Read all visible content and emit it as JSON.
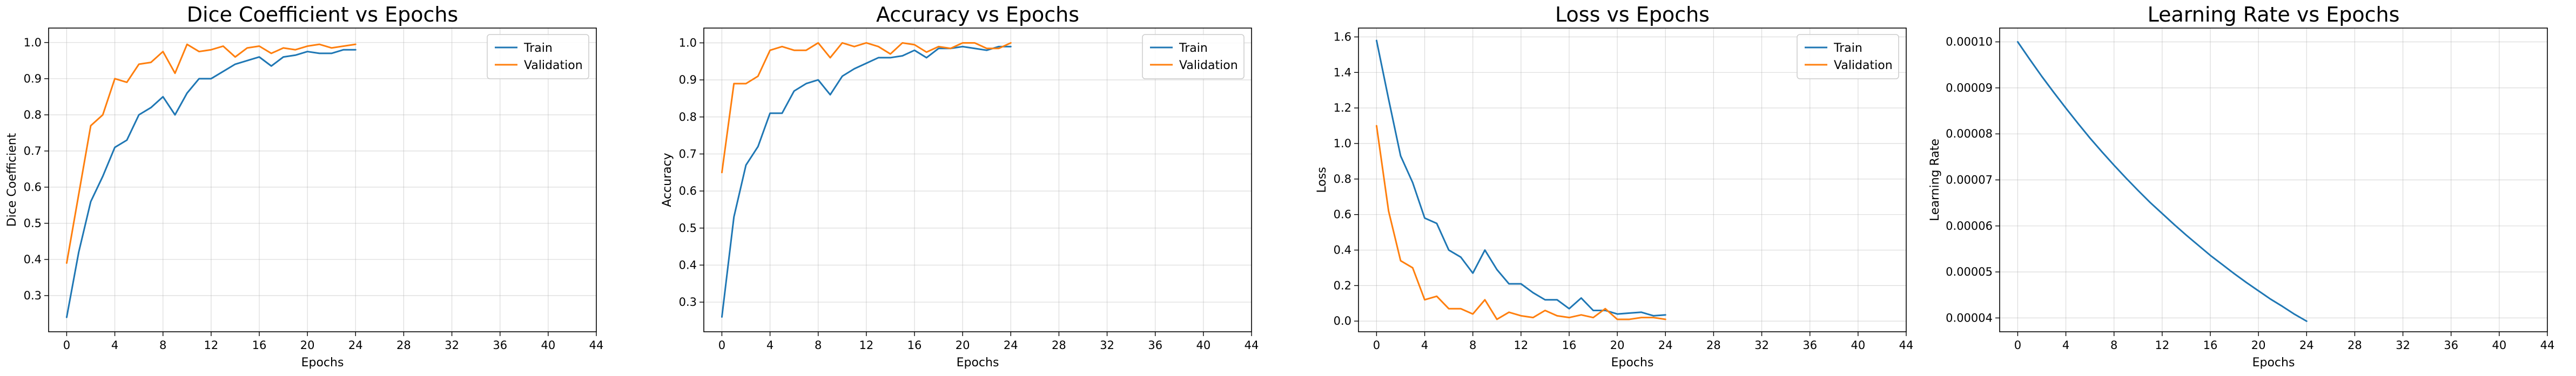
{
  "colors": {
    "train": "#1f77b4",
    "validation": "#ff7f0e"
  },
  "chart_data": [
    {
      "type": "line",
      "title": "Dice Coefficient vs Epochs",
      "xlabel": "Epochs",
      "ylabel": "Dice Coefficient",
      "xlim": [
        -1.5,
        44
      ],
      "ylim": [
        0.2,
        1.04
      ],
      "xticks": [
        0,
        4,
        8,
        12,
        16,
        20,
        24,
        28,
        32,
        36,
        40,
        44
      ],
      "yticks": [
        0.3,
        0.4,
        0.5,
        0.6,
        0.7,
        0.8,
        0.9,
        1.0
      ],
      "ytick_labels": [
        "0.3",
        "0.4",
        "0.5",
        "0.6",
        "0.7",
        "0.8",
        "0.9",
        "1.0"
      ],
      "grid": true,
      "legend": "top-right",
      "x": [
        0,
        1,
        2,
        3,
        4,
        5,
        6,
        7,
        8,
        9,
        10,
        11,
        12,
        13,
        14,
        15,
        16,
        17,
        18,
        19,
        20,
        21,
        22,
        23,
        24
      ],
      "series": [
        {
          "name": "Train",
          "color_key": "train",
          "values": [
            0.24,
            0.42,
            0.56,
            0.63,
            0.71,
            0.73,
            0.8,
            0.82,
            0.85,
            0.8,
            0.86,
            0.9,
            0.9,
            0.92,
            0.94,
            0.95,
            0.96,
            0.935,
            0.96,
            0.965,
            0.975,
            0.97,
            0.97,
            0.98,
            0.98
          ]
        },
        {
          "name": "Validation",
          "color_key": "validation",
          "values": [
            0.39,
            0.58,
            0.77,
            0.8,
            0.9,
            0.89,
            0.94,
            0.945,
            0.975,
            0.915,
            0.995,
            0.975,
            0.98,
            0.99,
            0.96,
            0.985,
            0.99,
            0.97,
            0.985,
            0.98,
            0.99,
            0.995,
            0.985,
            0.99,
            0.995
          ]
        }
      ]
    },
    {
      "type": "line",
      "title": "Accuracy vs Epochs",
      "xlabel": "Epochs",
      "ylabel": "Accuracy",
      "xlim": [
        -1.5,
        44
      ],
      "ylim": [
        0.22,
        1.04
      ],
      "xticks": [
        0,
        4,
        8,
        12,
        16,
        20,
        24,
        28,
        32,
        36,
        40,
        44
      ],
      "yticks": [
        0.3,
        0.4,
        0.5,
        0.6,
        0.7,
        0.8,
        0.9,
        1.0
      ],
      "ytick_labels": [
        "0.3",
        "0.4",
        "0.5",
        "0.6",
        "0.7",
        "0.8",
        "0.9",
        "1.0"
      ],
      "grid": true,
      "legend": "top-right",
      "x": [
        0,
        1,
        2,
        3,
        4,
        5,
        6,
        7,
        8,
        9,
        10,
        11,
        12,
        13,
        14,
        15,
        16,
        17,
        18,
        19,
        20,
        21,
        22,
        23,
        24
      ],
      "series": [
        {
          "name": "Train",
          "color_key": "train",
          "values": [
            0.26,
            0.53,
            0.67,
            0.72,
            0.81,
            0.81,
            0.87,
            0.89,
            0.9,
            0.86,
            0.91,
            0.93,
            0.945,
            0.96,
            0.96,
            0.965,
            0.98,
            0.96,
            0.985,
            0.985,
            0.99,
            0.985,
            0.98,
            0.99,
            0.99
          ]
        },
        {
          "name": "Validation",
          "color_key": "validation",
          "values": [
            0.65,
            0.89,
            0.89,
            0.91,
            0.98,
            0.99,
            0.98,
            0.98,
            1.0,
            0.96,
            1.0,
            0.99,
            1.0,
            0.99,
            0.97,
            1.0,
            0.995,
            0.975,
            0.99,
            0.985,
            1.0,
            1.0,
            0.985,
            0.985,
            1.0
          ]
        }
      ]
    },
    {
      "type": "line",
      "title": "Loss vs Epochs",
      "xlabel": "Epochs",
      "ylabel": "Loss",
      "xlim": [
        -1.5,
        44
      ],
      "ylim": [
        -0.06,
        1.65
      ],
      "xticks": [
        0,
        4,
        8,
        12,
        16,
        20,
        24,
        28,
        32,
        36,
        40,
        44
      ],
      "yticks": [
        0.0,
        0.2,
        0.4,
        0.6,
        0.8,
        1.0,
        1.2,
        1.4,
        1.6
      ],
      "ytick_labels": [
        "0.0",
        "0.2",
        "0.4",
        "0.6",
        "0.8",
        "1.0",
        "1.2",
        "1.4",
        "1.6"
      ],
      "grid": true,
      "legend": "top-right",
      "x": [
        0,
        1,
        2,
        3,
        4,
        5,
        6,
        7,
        8,
        9,
        10,
        11,
        12,
        13,
        14,
        15,
        16,
        17,
        18,
        19,
        20,
        21,
        22,
        23,
        24
      ],
      "series": [
        {
          "name": "Train",
          "color_key": "train",
          "values": [
            1.58,
            1.25,
            0.93,
            0.78,
            0.58,
            0.55,
            0.4,
            0.36,
            0.27,
            0.4,
            0.29,
            0.21,
            0.21,
            0.16,
            0.12,
            0.12,
            0.07,
            0.13,
            0.06,
            0.06,
            0.04,
            0.045,
            0.05,
            0.03,
            0.035
          ]
        },
        {
          "name": "Validation",
          "color_key": "validation",
          "values": [
            1.1,
            0.62,
            0.34,
            0.3,
            0.12,
            0.14,
            0.07,
            0.07,
            0.04,
            0.12,
            0.01,
            0.05,
            0.03,
            0.02,
            0.06,
            0.03,
            0.02,
            0.035,
            0.02,
            0.07,
            0.01,
            0.01,
            0.02,
            0.02,
            0.01
          ]
        }
      ]
    },
    {
      "type": "line",
      "title": "Learning Rate vs Epochs",
      "xlabel": "Epochs",
      "ylabel": "Learning Rate",
      "xlim": [
        -1.5,
        44
      ],
      "ylim": [
        3.7e-05,
        0.000103
      ],
      "xticks": [
        0,
        4,
        8,
        12,
        16,
        20,
        24,
        28,
        32,
        36,
        40,
        44
      ],
      "yticks": [
        4e-05,
        5e-05,
        6e-05,
        7e-05,
        8e-05,
        9e-05,
        0.0001
      ],
      "ytick_labels": [
        "0.00004",
        "0.00005",
        "0.00006",
        "0.00007",
        "0.00008",
        "0.00009",
        "0.00010"
      ],
      "grid": true,
      "legend": "none",
      "x": [
        0,
        1,
        2,
        3,
        4,
        5,
        6,
        7,
        8,
        9,
        10,
        11,
        12,
        13,
        14,
        15,
        16,
        17,
        18,
        19,
        20,
        21,
        22,
        23,
        24
      ],
      "series": [
        {
          "color_key": "train",
          "values": [
            0.0001,
            9.62e-05,
            9.25e-05,
            8.9e-05,
            8.56e-05,
            8.23e-05,
            7.91e-05,
            7.61e-05,
            7.32e-05,
            7.04e-05,
            6.77e-05,
            6.51e-05,
            6.27e-05,
            6.03e-05,
            5.8e-05,
            5.58e-05,
            5.36e-05,
            5.16e-05,
            4.96e-05,
            4.77e-05,
            4.59e-05,
            4.41e-05,
            4.25e-05,
            4.08e-05,
            3.93e-05
          ]
        }
      ]
    }
  ]
}
